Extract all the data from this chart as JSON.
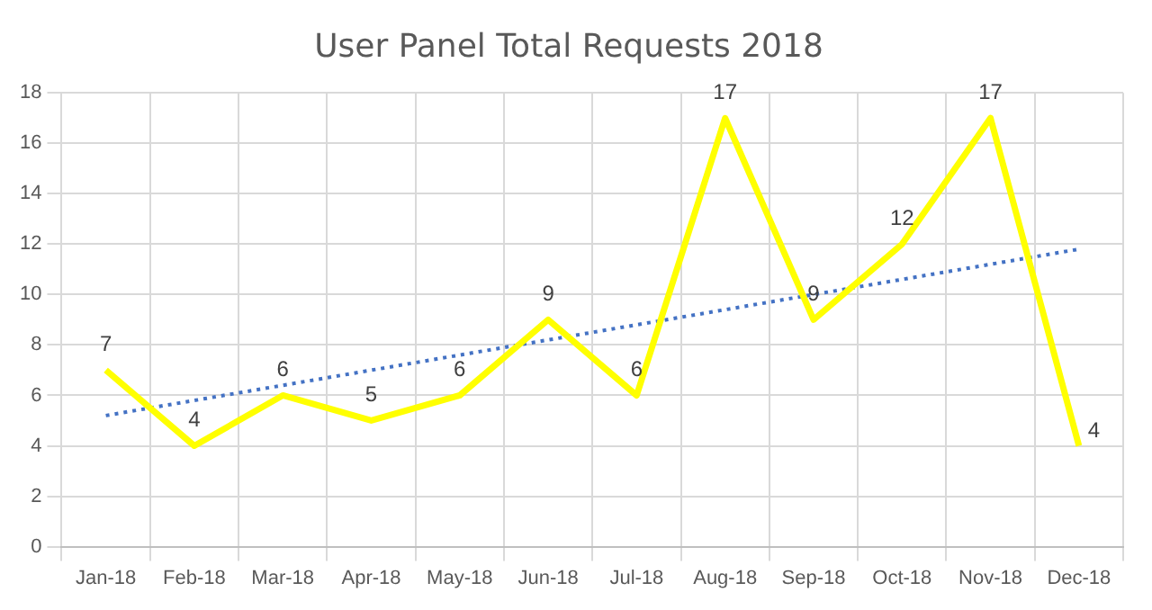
{
  "chart_data": {
    "type": "line",
    "title": "User Panel Total Requests 2018",
    "categories": [
      "Jan-18",
      "Feb-18",
      "Mar-18",
      "Apr-18",
      "May-18",
      "Jun-18",
      "Jul-18",
      "Aug-18",
      "Sep-18",
      "Oct-18",
      "Nov-18",
      "Dec-18"
    ],
    "series": [
      {
        "color": "#ffff00",
        "values": [
          7,
          4,
          6,
          5,
          6,
          9,
          6,
          17,
          9,
          12,
          17,
          4
        ],
        "value_labels": [
          "7",
          "4",
          "6",
          "5",
          "6",
          "9",
          "6",
          "17",
          "9",
          "12",
          "17",
          "4"
        ]
      },
      {
        "type": "line",
        "color": "#4472c4",
        "line_style": "dotted",
        "x": [
          "Jan-18",
          "Dec-18"
        ],
        "values": [
          5.2,
          11.8
        ]
      }
    ],
    "ylim": [
      0,
      18
    ],
    "yticks": [
      0,
      2,
      4,
      6,
      8,
      10,
      12,
      14,
      16,
      18
    ],
    "grid": true,
    "legend": false,
    "marker": "none"
  }
}
